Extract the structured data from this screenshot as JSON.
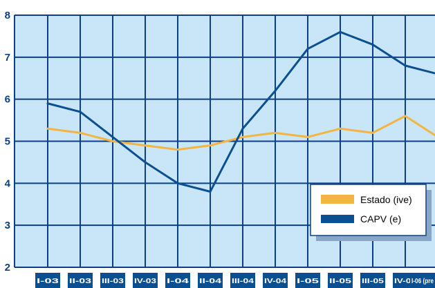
{
  "chart_data": {
    "type": "line",
    "categories": [
      "I-03",
      "II-03",
      "III-03",
      "IV-03",
      "I-04",
      "II-04",
      "III-04",
      "IV-04",
      "I-05",
      "II-05",
      "III-05",
      "IV-05",
      "I-06 (pre"
    ],
    "series": [
      {
        "name": "Estado (ive)",
        "color": "#f2b544",
        "values": [
          5.3,
          5.2,
          5.0,
          4.9,
          4.8,
          4.9,
          5.1,
          5.2,
          5.1,
          5.3,
          5.2,
          5.6,
          5.1
        ]
      },
      {
        "name": "CAPV (e)",
        "color": "#0b4f93",
        "values": [
          5.9,
          5.7,
          5.1,
          4.5,
          4.0,
          3.8,
          5.3,
          6.2,
          7.2,
          7.6,
          7.3,
          6.8,
          6.6
        ]
      }
    ],
    "yticks": [
      2,
      3,
      4,
      5,
      6,
      7,
      8
    ],
    "ylim": [
      2,
      8
    ],
    "grid": true,
    "legend_position": "lower-right",
    "colors": {
      "plot_background": "#c9e6f9",
      "grid": "#0d3f86",
      "tick_label": "#0d3f86",
      "category_box": "#0b4f93"
    }
  }
}
